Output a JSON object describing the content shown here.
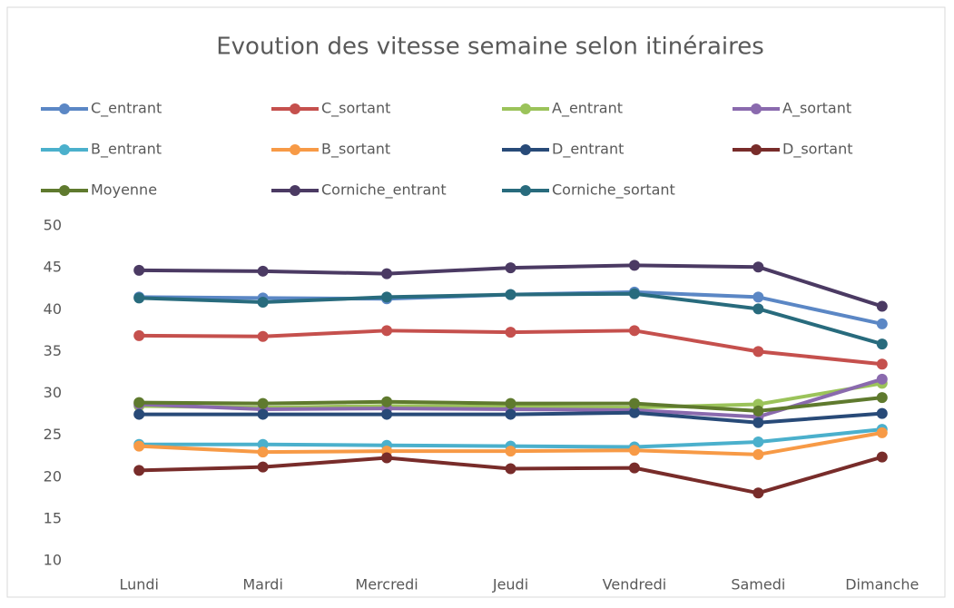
{
  "chart_data": {
    "type": "line",
    "title": "Evoution des vitesse semaine selon itinéraires",
    "categories": [
      "Lundi",
      "Mardi",
      "Mercredi",
      "Jeudi",
      "Vendredi",
      "Samedi",
      "Dimanche"
    ],
    "series": [
      {
        "name": "C_entrant",
        "color": "#5b87c5",
        "values": [
          41.5,
          41.4,
          41.3,
          41.8,
          42.1,
          41.5,
          38.3
        ]
      },
      {
        "name": "C_sortant",
        "color": "#c5504d",
        "values": [
          36.9,
          36.8,
          37.5,
          37.3,
          37.5,
          35.0,
          33.5
        ]
      },
      {
        "name": "A_entrant",
        "color": "#9bc35a",
        "values": [
          28.5,
          28.3,
          28.5,
          28.4,
          28.3,
          28.7,
          31.2
        ]
      },
      {
        "name": "A_sortant",
        "color": "#8a6aae",
        "values": [
          28.7,
          28.1,
          28.2,
          28.1,
          28.0,
          27.2,
          31.7
        ]
      },
      {
        "name": "B_entrant",
        "color": "#4bb0cc",
        "values": [
          23.9,
          23.9,
          23.8,
          23.7,
          23.6,
          24.2,
          25.7
        ]
      },
      {
        "name": "B_sortant",
        "color": "#f79a46",
        "values": [
          23.7,
          23.0,
          23.1,
          23.1,
          23.2,
          22.7,
          25.3
        ]
      },
      {
        "name": "D_entrant",
        "color": "#284a78",
        "values": [
          27.5,
          27.5,
          27.5,
          27.5,
          27.7,
          26.5,
          27.6
        ]
      },
      {
        "name": "D_sortant",
        "color": "#782c2a",
        "values": [
          20.8,
          21.2,
          22.3,
          21.0,
          21.1,
          18.1,
          22.4
        ]
      },
      {
        "name": "Moyenne",
        "color": "#5f7a2e",
        "values": [
          28.9,
          28.8,
          29.0,
          28.8,
          28.8,
          27.9,
          29.5
        ]
      },
      {
        "name": "Corniche_entrant",
        "color": "#4b3a63",
        "values": [
          44.7,
          44.6,
          44.3,
          45.0,
          45.3,
          45.1,
          40.4
        ]
      },
      {
        "name": "Corniche_sortant",
        "color": "#286b7d",
        "values": [
          41.4,
          40.9,
          41.5,
          41.8,
          41.9,
          40.1,
          35.9
        ]
      }
    ],
    "ylim": [
      10,
      50
    ],
    "yticks": [
      10,
      15,
      20,
      25,
      30,
      35,
      40,
      45,
      50
    ],
    "grid": false,
    "legend": "top"
  }
}
